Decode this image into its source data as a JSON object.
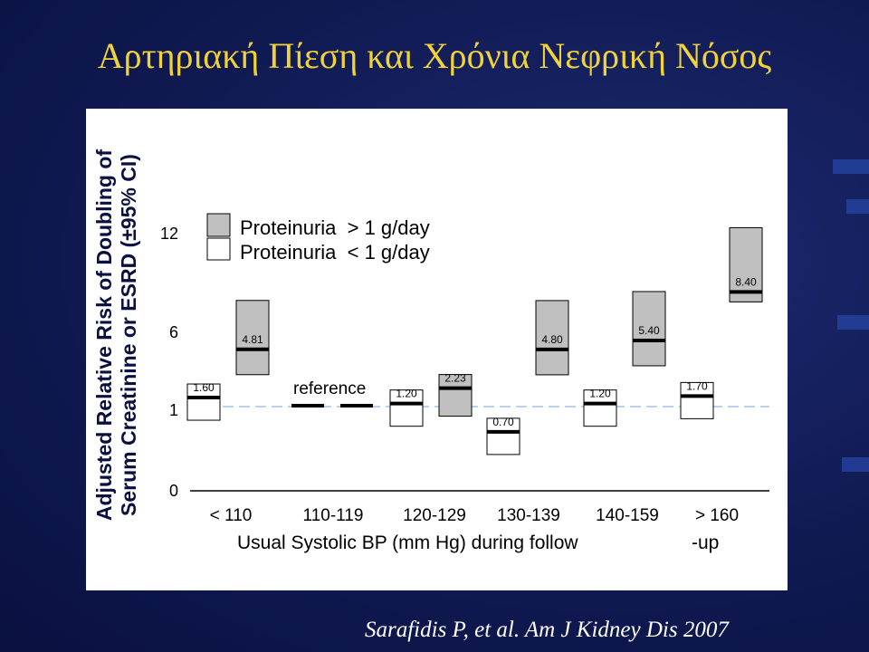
{
  "slide": {
    "title": "Αρτηριακή Πίεση και Χρόνια Νεφρική Νόσος",
    "citation": "Sarafidis P, et al. Am J Kidney Dis 2007"
  },
  "colors": {
    "background": "#0f1a4f",
    "title": "#f0d23a",
    "panel": "#ffffff",
    "gray_bar": "#c0c0c0",
    "reference_line": "#bcd0f0"
  },
  "chart_data": {
    "type": "bar",
    "ylabel_lines": [
      "Adjusted Relative Risk of Doubling of",
      "Serum Creatinine or ESRD (±95% CI)"
    ],
    "ytick_labels": [
      "12",
      "6",
      "1",
      "0"
    ],
    "categories": [
      "< 110",
      "110-119",
      "120-129",
      "130-139",
      "140-159",
      "> 160"
    ],
    "xlabel": "Usual Systolic BP (mm Hg) during follow",
    "xlabel_tail": "-up",
    "reference_label": "reference",
    "reference_value": 1,
    "series": [
      {
        "name": "Proteinuria  > 1 g/day",
        "legend_label": "Proteinuria  > 1 g/day",
        "color": "#c0c0c0",
        "values": [
          4.81,
          1,
          2.23,
          4.8,
          5.4,
          8.4
        ],
        "value_labels": [
          "4.81",
          "",
          "2.23",
          "4.80",
          "5.40",
          "8.40"
        ]
      },
      {
        "name": "Proteinuria  < 1 g/day",
        "legend_label": "Proteinuria  < 1 g/day",
        "color": "#ffffff",
        "values": [
          1.6,
          1,
          1.2,
          0.7,
          1.2,
          1.7
        ],
        "value_labels": [
          "1.60",
          "",
          "1.20",
          "0.70",
          "1.20",
          "1.70"
        ]
      }
    ]
  }
}
